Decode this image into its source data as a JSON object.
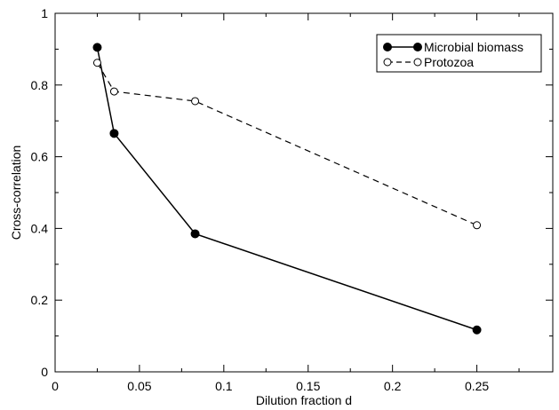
{
  "chart_data": {
    "type": "line",
    "xlabel": "Dilution fraction d",
    "ylabel": "Cross-correlation",
    "xlim": [
      0,
      0.295
    ],
    "ylim": [
      0,
      1
    ],
    "x_ticks": [
      0,
      0.05,
      0.1,
      0.15,
      0.2,
      0.25
    ],
    "x_tick_labels": [
      "0",
      "0.05",
      "0.1",
      "0.15",
      "0.2",
      "0.25"
    ],
    "y_ticks": [
      0,
      0.2,
      0.4,
      0.6,
      0.8,
      1
    ],
    "y_tick_labels": [
      "0",
      "0.2",
      "0.4",
      "0.6",
      "0.8",
      "1"
    ],
    "grid": false,
    "legend_position": "top-right",
    "series": [
      {
        "name": "Microbial biomass",
        "x": [
          0.025,
          0.035,
          0.083,
          0.25
        ],
        "y": [
          0.905,
          0.665,
          0.385,
          0.117
        ],
        "line_style": "solid",
        "marker": "filled-circle",
        "color": "#000000"
      },
      {
        "name": "Protozoa",
        "x": [
          0.025,
          0.035,
          0.083,
          0.25
        ],
        "y": [
          0.862,
          0.782,
          0.755,
          0.409
        ],
        "line_style": "dashed",
        "marker": "open-circle",
        "color": "#000000"
      }
    ]
  }
}
